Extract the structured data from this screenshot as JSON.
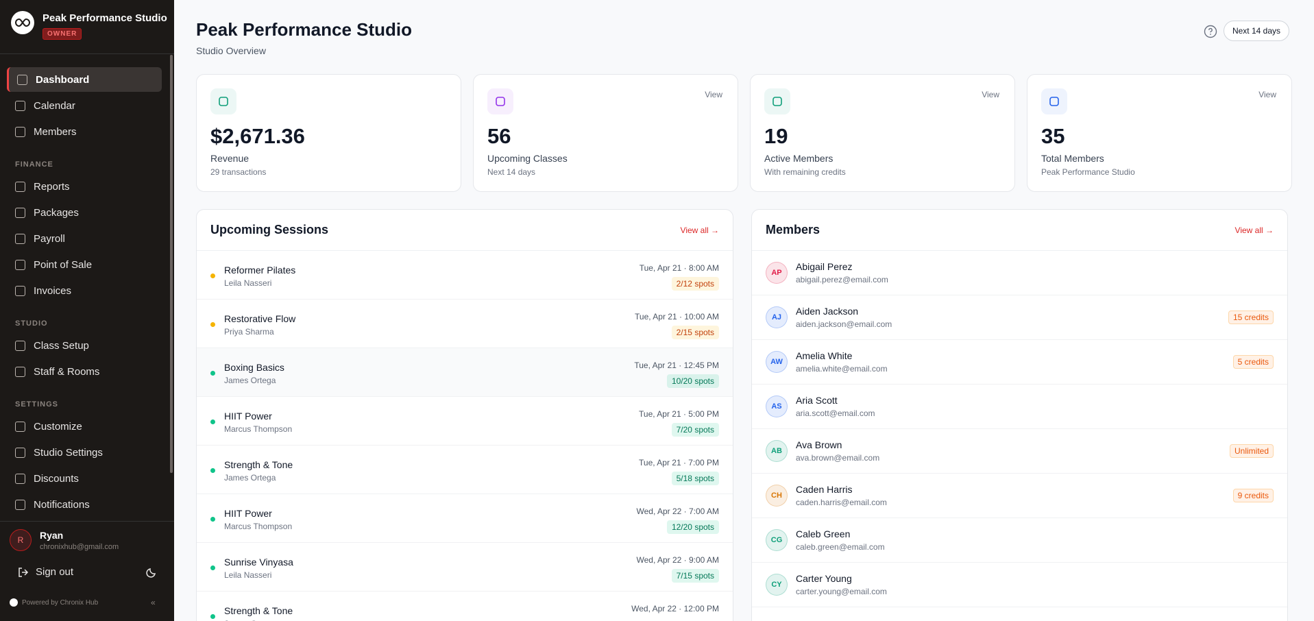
{
  "sidebar": {
    "studio_name": "Peak Performance Studio",
    "role": "OWNER",
    "sections": [
      {
        "items": [
          "Dashboard",
          "Calendar",
          "Members"
        ]
      },
      {
        "label": "FINANCE",
        "items": [
          "Reports",
          "Packages",
          "Payroll",
          "Point of Sale",
          "Invoices"
        ]
      },
      {
        "label": "STUDIO",
        "items": [
          "Class Setup",
          "Staff & Rooms"
        ]
      },
      {
        "label": "SETTINGS",
        "items": [
          "Customize",
          "Studio Settings",
          "Discounts",
          "Notifications"
        ]
      }
    ],
    "active_item": "Dashboard",
    "user": {
      "initial": "R",
      "name": "Ryan",
      "email": "chronixhub@gmail.com"
    },
    "sign_out": "Sign out",
    "powered_by": "Powered by Chronix Hub"
  },
  "header": {
    "title": "Peak Performance Studio",
    "subtitle": "Studio Overview",
    "range": "Next 14 days"
  },
  "stats": [
    {
      "value": "$2,671.36",
      "label": "Revenue",
      "note": "29 transactions",
      "color": "#0f9f7a"
    },
    {
      "value": "56",
      "label": "Upcoming Classes",
      "note": "Next 14 days",
      "link": "View",
      "color": "#9333ea"
    },
    {
      "value": "19",
      "label": "Active Members",
      "note": "With remaining credits",
      "link": "View",
      "color": "#0f9f7a"
    },
    {
      "value": "35",
      "label": "Total Members",
      "note": "Peak Performance Studio",
      "link": "View",
      "color": "#2563eb"
    }
  ],
  "sessions": {
    "title": "Upcoming Sessions",
    "link": "View all →",
    "rows": [
      {
        "name": "Reformer Pilates",
        "instructor": "Leila Nasseri",
        "time": "Tue, Apr 21 · 8:00 AM",
        "spots": "2/12 spots",
        "color": "#f5b400"
      },
      {
        "name": "Restorative Flow",
        "instructor": "Priya Sharma",
        "time": "Tue, Apr 21 · 10:00 AM",
        "spots": "2/15 spots",
        "color": "#f5b400"
      },
      {
        "name": "Boxing Basics",
        "instructor": "James Ortega",
        "time": "Tue, Apr 21 · 12:45 PM",
        "spots": "10/20 spots",
        "color": "#10c48a"
      },
      {
        "name": "HIIT Power",
        "instructor": "Marcus Thompson",
        "time": "Tue, Apr 21 · 5:00 PM",
        "spots": "7/20 spots",
        "color": "#10c48a"
      },
      {
        "name": "Strength & Tone",
        "instructor": "James Ortega",
        "time": "Tue, Apr 21 · 7:00 PM",
        "spots": "5/18 spots",
        "color": "#10c48a"
      },
      {
        "name": "HIIT Power",
        "instructor": "Marcus Thompson",
        "time": "Wed, Apr 22 · 7:00 AM",
        "spots": "12/20 spots",
        "color": "#10c48a"
      },
      {
        "name": "Sunrise Vinyasa",
        "instructor": "Leila Nasseri",
        "time": "Wed, Apr 22 · 9:00 AM",
        "spots": "7/15 spots",
        "color": "#10c48a"
      },
      {
        "name": "Strength & Tone",
        "instructor": "James Ortega",
        "time": "Wed, Apr 22 · 12:00 PM",
        "color": "#10c48a"
      }
    ]
  },
  "members": {
    "title": "Members",
    "link": "View all →",
    "rows": [
      {
        "initials": "AP",
        "name": "Abigail Perez",
        "email": "abigail.perez@email.com",
        "color": "#e11d48"
      },
      {
        "initials": "AJ",
        "name": "Aiden Jackson",
        "email": "aiden.jackson@email.com",
        "badge": "15 credits",
        "color": "#2563eb"
      },
      {
        "initials": "AW",
        "name": "Amelia White",
        "email": "amelia.white@email.com",
        "badge": "5 credits",
        "color": "#2563eb"
      },
      {
        "initials": "AS",
        "name": "Aria Scott",
        "email": "aria.scott@email.com",
        "color": "#2563eb"
      },
      {
        "initials": "AB",
        "name": "Ava Brown",
        "email": "ava.brown@email.com",
        "badge": "Unlimited",
        "color": "#0f9f7a"
      },
      {
        "initials": "CH",
        "name": "Caden Harris",
        "email": "caden.harris@email.com",
        "badge": "9 credits",
        "color": "#d97706"
      },
      {
        "initials": "CG",
        "name": "Caleb Green",
        "email": "caleb.green@email.com",
        "color": "#0f9f7a"
      },
      {
        "initials": "CY",
        "name": "Carter Young",
        "email": "carter.young@email.com",
        "color": "#0f9f7a"
      }
    ]
  }
}
